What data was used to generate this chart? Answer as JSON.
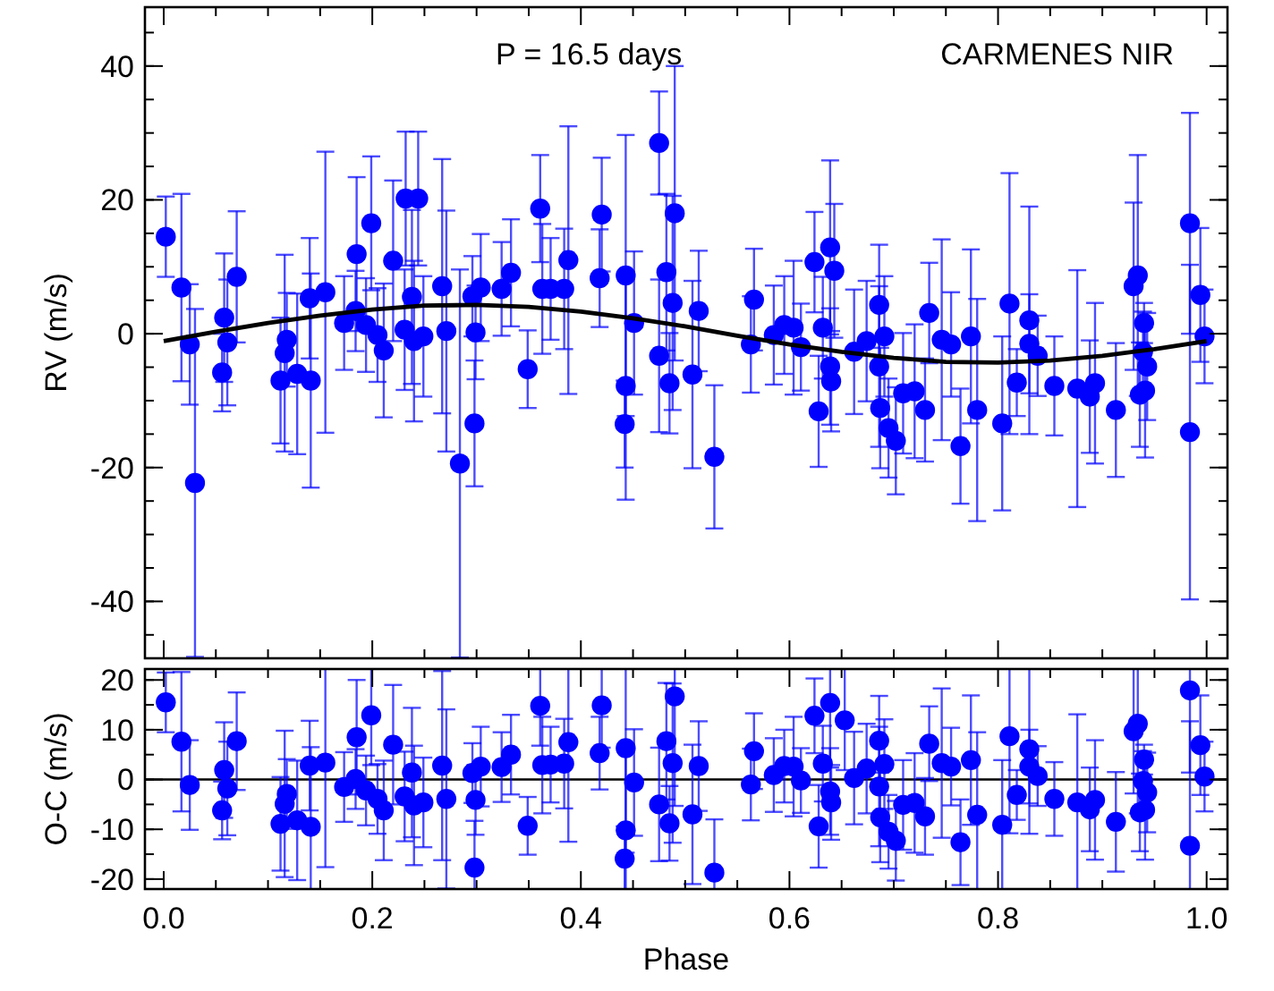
{
  "chart_data": [
    {
      "type": "scatter",
      "ylabel": "RV (m/s)",
      "annotations": [
        "P = 16.5 days",
        "CARMENES NIR"
      ],
      "xlim": [
        -0.018,
        1.02
      ],
      "ylim": [
        -48.5,
        48.8
      ],
      "xticks": [
        0,
        0.2,
        0.4,
        0.6,
        0.8,
        1.0
      ],
      "yticks": [
        -40,
        -20,
        0,
        20,
        40
      ],
      "tick_labels": "y",
      "series": [
        {
          "color": "#0000ff",
          "marker": "circle",
          "x": [
            0.002,
            0.017,
            0.025,
            0.058,
            0.061,
            0.056,
            0.07,
            0.112,
            0.116,
            0.118,
            0.128,
            0.141,
            0.14,
            0.155,
            0.173,
            0.184,
            0.185,
            0.199,
            0.194,
            0.205,
            0.211,
            0.22,
            0.231,
            0.238,
            0.24,
            0.249,
            0.267,
            0.271,
            0.296,
            0.304,
            0.299,
            0.298,
            0.324,
            0.333,
            0.349,
            0.361,
            0.363,
            0.371,
            0.384,
            0.388,
            0.418,
            0.42,
            0.443,
            0.443,
            0.442,
            0.451,
            0.482,
            0.49,
            0.488,
            0.475,
            0.485,
            0.507,
            0.513,
            0.528,
            0.566,
            0.563,
            0.585,
            0.595,
            0.604,
            0.611,
            0.624,
            0.639,
            0.643,
            0.632,
            0.639,
            0.64,
            0.628,
            0.662,
            0.674,
            0.686,
            0.687,
            0.691,
            0.686,
            0.695,
            0.702,
            0.709,
            0.72,
            0.73,
            0.734,
            0.746,
            0.755,
            0.764,
            0.774,
            0.78,
            0.804,
            0.811,
            0.818,
            0.83,
            0.83,
            0.838,
            0.854,
            0.876,
            0.888,
            0.893,
            0.913,
            0.93,
            0.934,
            0.94,
            0.939,
            0.943,
            0.936,
            0.941,
            0.984,
            0.984,
            0.994,
            0.998
          ],
          "values": [
            14.5,
            6.9,
            -1.6,
            2.4,
            -1.3,
            -5.8,
            8.5,
            -7.0,
            -2.9,
            -0.9,
            -6.0,
            -7.0,
            5.3,
            6.2,
            1.6,
            3.4,
            11.9,
            16.5,
            1.3,
            -0.2,
            -2.5,
            10.9,
            0.6,
            5.5,
            -1.1,
            -0.4,
            7.1,
            0.4,
            5.6,
            6.9,
            0.2,
            -13.4,
            6.7,
            9.1,
            -5.3,
            18.7,
            6.7,
            6.7,
            6.7,
            11.0,
            8.3,
            17.8,
            8.7,
            -7.8,
            -13.5,
            1.6,
            9.2,
            18.0,
            4.6,
            -3.3,
            -7.4,
            -6.1,
            3.4,
            -18.4,
            5.1,
            -1.6,
            -0.2,
            1.3,
            0.9,
            -2.0,
            10.7,
            12.9,
            9.4,
            0.9,
            -4.9,
            -7.1,
            -11.6,
            -2.7,
            -1.1,
            4.3,
            -11.1,
            -0.4,
            -4.9,
            -14.1,
            -16.0,
            -8.9,
            -8.6,
            -11.4,
            3.1,
            -0.9,
            -1.6,
            -16.8,
            -0.4,
            -11.4,
            -13.4,
            4.5,
            -7.3,
            2.0,
            -1.5,
            -3.3,
            -7.8,
            -8.2,
            -9.4,
            -7.4,
            -11.4,
            7.1,
            8.7,
            1.6,
            -2.7,
            -4.9,
            -9.1,
            -8.5,
            16.5,
            -14.7,
            5.8,
            -0.4
          ],
          "errors": [
            6,
            14,
            9,
            9.6,
            9.4,
            5.8,
            9.8,
            9.4,
            14.7,
            7,
            12,
            16,
            9,
            21,
            7,
            6,
            11.5,
            10,
            7,
            7,
            10,
            12,
            9,
            13,
            12,
            9,
            19,
            18,
            6,
            8,
            7,
            9.4,
            7,
            8,
            5.8,
            8,
            9.7,
            7.6,
            9,
            20,
            7.3,
            8.5,
            21,
            17,
            6.5,
            10.7,
            11.7,
            22,
            16,
            11.4,
            7.5,
            14,
            9,
            10.7,
            7.6,
            7.2,
            7.4,
            7.3,
            10,
            6.5,
            7.5,
            13,
            10,
            7.6,
            8.7,
            7.5,
            8.3,
            9.3,
            9,
            9,
            9,
            9,
            12,
            7.4,
            8,
            9,
            10,
            7.7,
            7.5,
            15,
            7.8,
            8.6,
            13,
            16.6,
            13,
            19.5,
            5,
            17,
            7.4,
            6,
            7.4,
            17.7,
            8.4,
            12,
            10,
            12.5,
            18,
            3,
            6,
            8,
            7.8,
            10,
            16.5,
            25,
            10,
            7
          ]
        },
        {
          "color": "#0000ff",
          "marker": "circle",
          "x": [
            0.03,
            0.232,
            0.244,
            0.284,
            0.475
          ],
          "values": [
            -22.3,
            20.2,
            20.2,
            -19.4,
            28.5
          ],
          "errors": [
            26,
            10,
            10,
            29,
            7.7
          ]
        },
        {
          "type": "line",
          "color": "#000000",
          "x": [
            0,
            0.05,
            0.1,
            0.15,
            0.2,
            0.25,
            0.3,
            0.35,
            0.4,
            0.45,
            0.5,
            0.55,
            0.6,
            0.65,
            0.7,
            0.75,
            0.8,
            0.85,
            0.9,
            0.95,
            1.0
          ],
          "values": [
            -1.1,
            0.3,
            1.6,
            2.7,
            3.6,
            4.2,
            4.3,
            4.0,
            3.3,
            2.3,
            1.1,
            -0.3,
            -1.6,
            -2.7,
            -3.6,
            -4.2,
            -4.3,
            -4.0,
            -3.3,
            -2.3,
            -1.1
          ]
        }
      ]
    },
    {
      "type": "scatter",
      "xlabel": "Phase",
      "ylabel": "O-C (m/s)",
      "xlim": [
        -0.018,
        1.02
      ],
      "ylim": [
        -22,
        22.2
      ],
      "xticks": [
        {
          "value": 0,
          "label": "0.0"
        },
        0.2,
        0.4,
        0.6,
        0.8,
        {
          "value": 1.0,
          "label": "1.0"
        }
      ],
      "yticks": [
        -20,
        -10,
        0,
        10,
        20
      ],
      "ref_lines": [
        {
          "axis": "y",
          "value": 0,
          "color": "#000000"
        }
      ],
      "series": [
        {
          "color": "#0000ff",
          "marker": "circle",
          "x": [
            0.002,
            0.017,
            0.025,
            0.058,
            0.061,
            0.056,
            0.07,
            0.112,
            0.116,
            0.118,
            0.128,
            0.141,
            0.14,
            0.155,
            0.173,
            0.184,
            0.185,
            0.199,
            0.194,
            0.205,
            0.211,
            0.22,
            0.231,
            0.238,
            0.24,
            0.249,
            0.267,
            0.271,
            0.296,
            0.304,
            0.299,
            0.298,
            0.324,
            0.333,
            0.349,
            0.361,
            0.363,
            0.371,
            0.384,
            0.388,
            0.418,
            0.42,
            0.443,
            0.443,
            0.442,
            0.451,
            0.482,
            0.49,
            0.488,
            0.475,
            0.485,
            0.507,
            0.513,
            0.528,
            0.566,
            0.563,
            0.585,
            0.595,
            0.604,
            0.611,
            0.624,
            0.639,
            0.653,
            0.632,
            0.639,
            0.64,
            0.628,
            0.662,
            0.674,
            0.686,
            0.687,
            0.691,
            0.686,
            0.695,
            0.702,
            0.709,
            0.72,
            0.73,
            0.734,
            0.746,
            0.755,
            0.764,
            0.774,
            0.78,
            0.804,
            0.811,
            0.818,
            0.83,
            0.83,
            0.838,
            0.854,
            0.876,
            0.888,
            0.893,
            0.913,
            0.93,
            0.934,
            0.94,
            0.939,
            0.943,
            0.936,
            0.941,
            0.984,
            0.984,
            0.994,
            0.998
          ],
          "values": [
            15.5,
            7.6,
            -1.1,
            1.9,
            -1.8,
            -6.2,
            7.7,
            -8.9,
            -4.9,
            -2.9,
            -8.2,
            -9.5,
            2.8,
            3.4,
            -1.5,
            0.1,
            8.5,
            12.9,
            -2.2,
            -3.9,
            -6.2,
            7.0,
            -3.4,
            1.4,
            -5.2,
            -4.6,
            2.8,
            -3.9,
            1.3,
            2.6,
            -4.1,
            -17.7,
            2.5,
            5.0,
            -9.3,
            14.8,
            2.9,
            3.0,
            3.2,
            7.5,
            5.3,
            14.9,
            6.3,
            -10.2,
            -15.9,
            -0.6,
            7.7,
            16.7,
            3.3,
            -5.0,
            -8.8,
            -7.0,
            2.7,
            -18.7,
            5.7,
            -1.0,
            0.9,
            2.7,
            2.6,
            -0.2,
            12.8,
            15.4,
            11.9,
            3.2,
            -2.4,
            -4.6,
            -9.4,
            0.3,
            2.2,
            7.8,
            -7.6,
            3.1,
            -1.4,
            -10.5,
            -12.3,
            -5.1,
            -4.7,
            -7.4,
            7.2,
            3.3,
            2.6,
            -12.6,
            3.9,
            -7.1,
            -9.1,
            8.7,
            -3.1,
            6.1,
            2.6,
            0.7,
            -3.9,
            -4.6,
            -6.0,
            -4.1,
            -8.5,
            9.7,
            11.2,
            4.0,
            -0.3,
            -2.6,
            -6.6,
            -6.1,
            17.9,
            -13.3,
            6.9,
            0.6
          ],
          "errors": [
            6,
            14,
            9,
            9.6,
            9.4,
            5.8,
            9.8,
            9.4,
            14.7,
            7,
            12,
            [
              -22,
              6.5
            ],
            9,
            [
              -17.6,
              22.2
            ],
            7,
            6,
            11.5,
            [
              2.9,
              22.2
            ],
            7,
            7,
            10,
            12,
            9,
            13,
            12,
            9,
            19,
            18,
            6,
            8,
            7,
            [
              -22,
              -8.3
            ],
            7,
            8,
            5.8,
            [
              6.8,
              22.2
            ],
            9.7,
            7.6,
            9,
            [
              -12.5,
              22.2
            ],
            7.3,
            [
              6.4,
              22.2
            ],
            [
              -14.7,
              22.2
            ],
            [
              -22,
              6.8
            ],
            [
              -22,
              -9.4
            ],
            10.7,
            11.7,
            [
              -5.3,
              22.2
            ],
            16,
            11.4,
            7.5,
            14,
            9,
            [
              -22,
              -8
            ],
            7.6,
            7.2,
            7.4,
            7.3,
            10,
            6.5,
            7.5,
            [
              2.4,
              22.2
            ],
            [
              1.9,
              22.2
            ],
            7.6,
            8.7,
            7.5,
            8.3,
            9.3,
            9,
            9,
            9,
            9,
            12,
            7.4,
            8,
            9,
            10,
            7.7,
            7.5,
            15,
            7.8,
            8.6,
            13,
            [
              -22,
              9.5
            ],
            [
              -22,
              3.9
            ],
            [
              -10.8,
              22.2
            ],
            5,
            [
              -10.9,
              22.2
            ],
            7.4,
            6,
            7.4,
            [
              -22,
              13.1
            ],
            8.4,
            12,
            10,
            12.5,
            [
              -6.8,
              22.2
            ],
            3,
            6,
            8,
            7.8,
            10,
            [
              1.4,
              22.2
            ],
            [
              -22,
              11.7
            ],
            10,
            7
          ]
        }
      ]
    }
  ]
}
